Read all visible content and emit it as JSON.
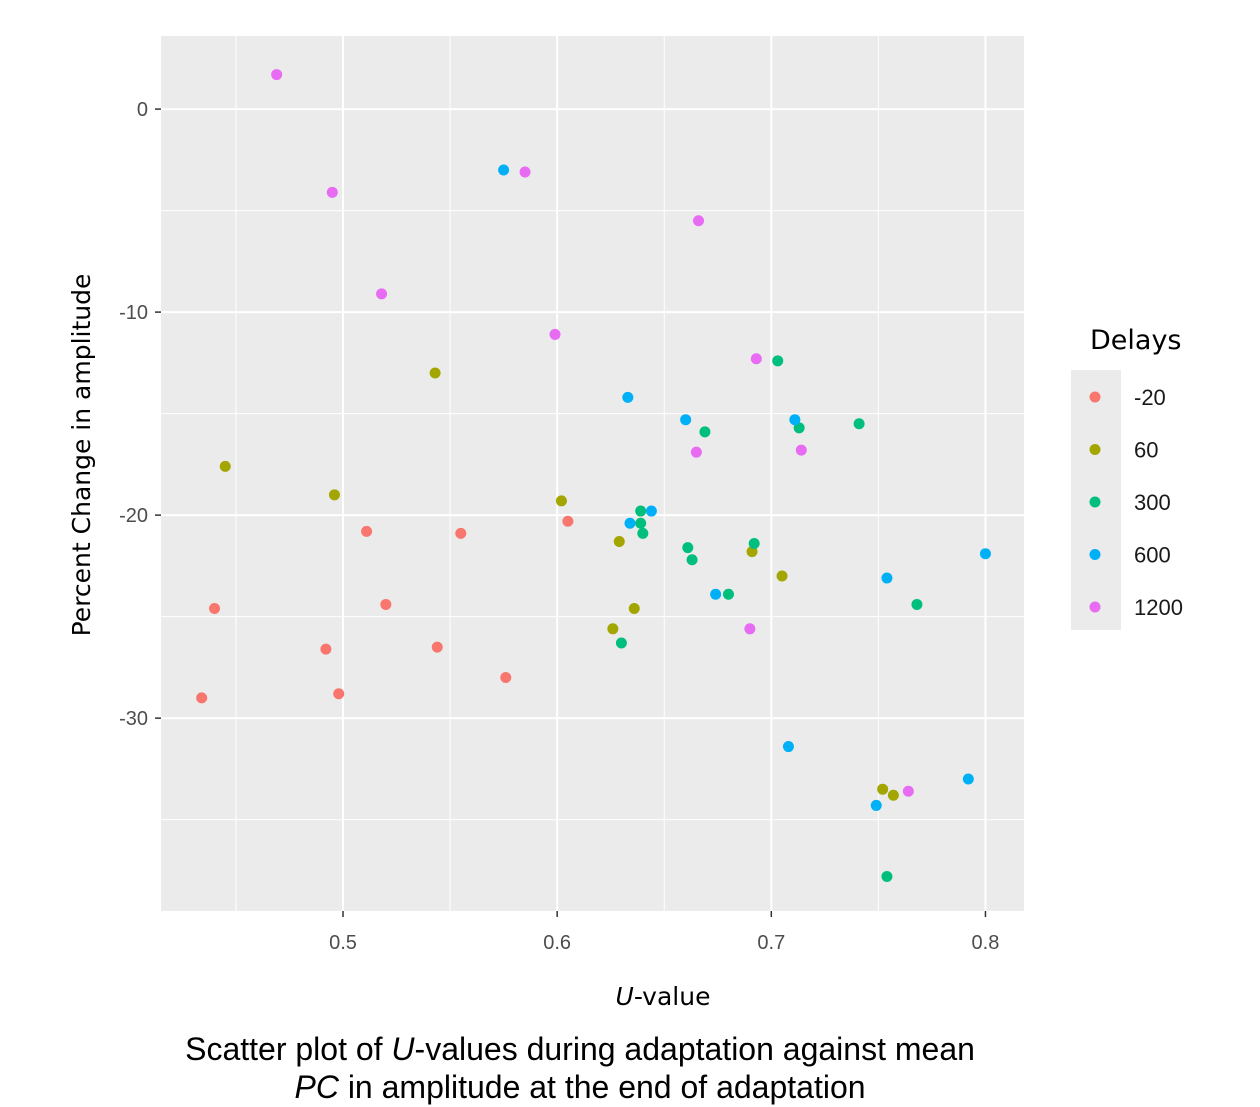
{
  "chart_data": {
    "type": "scatter",
    "xlabel_italic": "U",
    "xlabel_rest": "-value",
    "ylabel": "Percent Change in amplitude",
    "xlim": [
      0.415,
      0.818
    ],
    "ylim": [
      -39.5,
      3.6
    ],
    "x_ticks": [
      0.5,
      0.6,
      0.7,
      0.8
    ],
    "x_tick_labels": [
      "0.5",
      "0.6",
      "0.7",
      "0.8"
    ],
    "y_ticks": [
      0,
      -10,
      -20,
      -30
    ],
    "y_tick_labels": [
      "0",
      "-10",
      "-20",
      "-30"
    ],
    "grid": true,
    "legend": {
      "title": "Delays",
      "position": "right"
    },
    "series": [
      {
        "name": "-20",
        "color": "#F8766D",
        "points": [
          [
            0.434,
            -29.0
          ],
          [
            0.44,
            -24.6
          ],
          [
            0.492,
            -26.6
          ],
          [
            0.498,
            -28.8
          ],
          [
            0.511,
            -20.8
          ],
          [
            0.52,
            -24.4
          ],
          [
            0.544,
            -26.5
          ],
          [
            0.555,
            -20.9
          ],
          [
            0.576,
            -28.0
          ],
          [
            0.605,
            -20.3
          ]
        ]
      },
      {
        "name": "60",
        "color": "#A3A500",
        "points": [
          [
            0.445,
            -17.6
          ],
          [
            0.496,
            -19.0
          ],
          [
            0.543,
            -13.0
          ],
          [
            0.602,
            -19.3
          ],
          [
            0.626,
            -25.6
          ],
          [
            0.629,
            -21.3
          ],
          [
            0.636,
            -24.6
          ],
          [
            0.691,
            -21.8
          ],
          [
            0.705,
            -23.0
          ],
          [
            0.752,
            -33.5
          ],
          [
            0.757,
            -33.8
          ]
        ]
      },
      {
        "name": "300",
        "color": "#00BF7D",
        "points": [
          [
            0.63,
            -26.3
          ],
          [
            0.639,
            -19.8
          ],
          [
            0.639,
            -20.4
          ],
          [
            0.64,
            -20.9
          ],
          [
            0.661,
            -21.6
          ],
          [
            0.663,
            -22.2
          ],
          [
            0.669,
            -15.9
          ],
          [
            0.68,
            -23.9
          ],
          [
            0.692,
            -21.4
          ],
          [
            0.703,
            -12.4
          ],
          [
            0.713,
            -15.7
          ],
          [
            0.741,
            -15.5
          ],
          [
            0.754,
            -37.8
          ],
          [
            0.768,
            -24.4
          ]
        ]
      },
      {
        "name": "600",
        "color": "#00B0F6",
        "points": [
          [
            0.575,
            -3.0
          ],
          [
            0.633,
            -14.2
          ],
          [
            0.634,
            -20.4
          ],
          [
            0.644,
            -19.8
          ],
          [
            0.66,
            -15.3
          ],
          [
            0.674,
            -23.9
          ],
          [
            0.708,
            -31.4
          ],
          [
            0.711,
            -15.3
          ],
          [
            0.749,
            -34.3
          ],
          [
            0.754,
            -23.1
          ],
          [
            0.792,
            -33.0
          ],
          [
            0.8,
            -21.9
          ]
        ]
      },
      {
        "name": "1200",
        "color": "#E76BF3",
        "points": [
          [
            0.469,
            1.7
          ],
          [
            0.495,
            -4.1
          ],
          [
            0.518,
            -9.1
          ],
          [
            0.585,
            -3.1
          ],
          [
            0.599,
            -11.1
          ],
          [
            0.665,
            -16.9
          ],
          [
            0.666,
            -5.5
          ],
          [
            0.69,
            -25.6
          ],
          [
            0.693,
            -12.3
          ],
          [
            0.714,
            -16.8
          ],
          [
            0.764,
            -33.6
          ]
        ]
      }
    ]
  },
  "caption": {
    "line1_italic": "U",
    "line1_rest": "-values during adaptation against mean",
    "line1_prefix": "Scatter plot of ",
    "line2_italic": "PC",
    "line2_rest": " in amplitude at the end of adaptation"
  }
}
